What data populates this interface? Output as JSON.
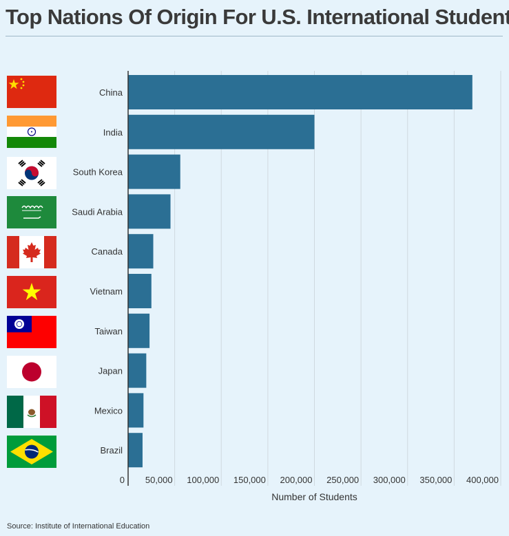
{
  "title": "Top Nations Of Origin For U.S. International Students",
  "source": "Source: Institute of International Education",
  "colors": {
    "bar": "#2b6f94",
    "background": "#e6f3fb",
    "grid": "#cfd9df",
    "axis": "#333333"
  },
  "chart_data": {
    "type": "bar",
    "orientation": "horizontal",
    "categories": [
      "China",
      "India",
      "South Korea",
      "Saudi Arabia",
      "Canada",
      "Vietnam",
      "Taiwan",
      "Japan",
      "Mexico",
      "Brazil"
    ],
    "values": [
      369548,
      200000,
      56000,
      45500,
      27000,
      25000,
      23000,
      19500,
      16500,
      15500
    ],
    "xlabel": "Number of Students",
    "xlim": [
      0,
      400000
    ],
    "xticks": [
      0,
      50000,
      100000,
      150000,
      200000,
      250000,
      300000,
      350000,
      400000
    ],
    "xtick_labels": [
      "0",
      "50,000",
      "100,000",
      "150,000",
      "200,000",
      "250,000",
      "300,000",
      "350,000",
      "400,000"
    ],
    "grid": "vertical",
    "flags": [
      "china-flag-icon",
      "india-flag-icon",
      "south-korea-flag-icon",
      "saudi-arabia-flag-icon",
      "canada-flag-icon",
      "vietnam-flag-icon",
      "taiwan-flag-icon",
      "japan-flag-icon",
      "mexico-flag-icon",
      "brazil-flag-icon"
    ]
  }
}
